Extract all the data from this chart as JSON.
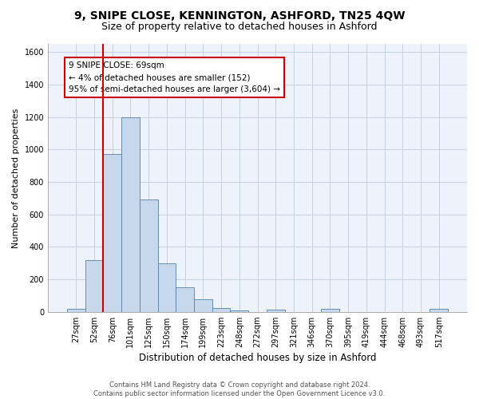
{
  "title1": "9, SNIPE CLOSE, KENNINGTON, ASHFORD, TN25 4QW",
  "title2": "Size of property relative to detached houses in Ashford",
  "xlabel": "Distribution of detached houses by size in Ashford",
  "ylabel": "Number of detached properties",
  "footer1": "Contains HM Land Registry data © Crown copyright and database right 2024.",
  "footer2": "Contains public sector information licensed under the Open Government Licence v3.0.",
  "annotation_title": "9 SNIPE CLOSE: 69sqm",
  "annotation_line1": "← 4% of detached houses are smaller (152)",
  "annotation_line2": "95% of semi-detached houses are larger (3,604) →",
  "bar_color": "#c8d8ec",
  "bar_edge_color": "#5580aa",
  "vline_color": "#cc0000",
  "categories": [
    "27sqm",
    "52sqm",
    "76sqm",
    "101sqm",
    "125sqm",
    "150sqm",
    "174sqm",
    "199sqm",
    "223sqm",
    "248sqm",
    "272sqm",
    "297sqm",
    "321sqm",
    "346sqm",
    "370sqm",
    "395sqm",
    "419sqm",
    "444sqm",
    "468sqm",
    "493sqm",
    "517sqm"
  ],
  "values": [
    20,
    320,
    970,
    1200,
    690,
    300,
    150,
    75,
    25,
    10,
    0,
    15,
    0,
    0,
    20,
    0,
    0,
    0,
    0,
    0,
    20
  ],
  "ylim": [
    0,
    1650
  ],
  "yticks": [
    0,
    200,
    400,
    600,
    800,
    1000,
    1200,
    1400,
    1600
  ],
  "vline_pos": 1.5,
  "bg_color": "#eef2fa",
  "grid_color": "#c0ccdd",
  "title1_fontsize": 10,
  "title2_fontsize": 9,
  "ylabel_fontsize": 8,
  "xlabel_fontsize": 8.5,
  "tick_fontsize": 7,
  "ann_fontsize": 7.5,
  "footer_fontsize": 6
}
